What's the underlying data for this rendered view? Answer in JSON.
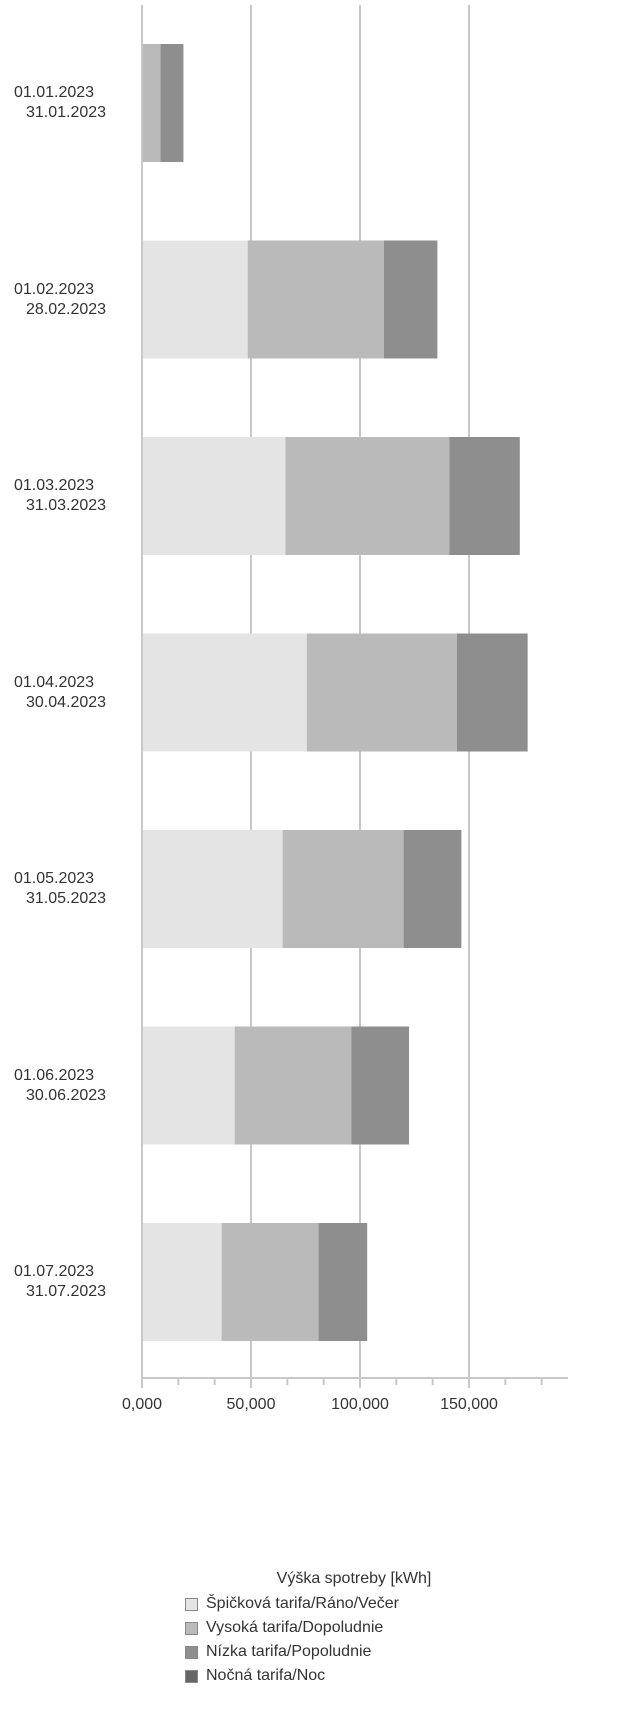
{
  "chart_data": {
    "type": "bar",
    "orientation": "horizontal",
    "stacked": true,
    "categories": [
      [
        "01.01.2023",
        "31.01.2023"
      ],
      [
        "01.02.2023",
        "28.02.2023"
      ],
      [
        "01.03.2023",
        "31.03.2023"
      ],
      [
        "01.04.2023",
        "30.04.2023"
      ],
      [
        "01.05.2023",
        "31.05.2023"
      ],
      [
        "01.06.2023",
        "30.06.2023"
      ],
      [
        "01.07.2023",
        "31.07.2023"
      ]
    ],
    "series": [
      {
        "name": "Špičková tarifa/Ráno/Večer",
        "color": "#e4e4e4",
        "values": [
          0,
          48500,
          65800,
          75600,
          64500,
          42500,
          36500
        ]
      },
      {
        "name": "Vysoká tarifa/Dopoludnie",
        "color": "#bababa",
        "values": [
          8500,
          62500,
          75200,
          68800,
          55500,
          53500,
          44500
        ]
      },
      {
        "name": "Nízka tarifa/Popoludnie",
        "color": "#8e8e8e",
        "values": [
          10500,
          24500,
          32300,
          32500,
          26500,
          26500,
          22300
        ]
      },
      {
        "name": "Nočná tarifa/Noc",
        "color": "#666666",
        "values": [
          0,
          0,
          0,
          0,
          0,
          0,
          0
        ]
      }
    ],
    "xlabel": "Výška spotreby [kWh]",
    "xlim": [
      0,
      195000
    ],
    "xticks": [
      0,
      50000,
      100000,
      150000
    ],
    "xtick_labels": [
      "0,000",
      "50,000",
      "100,000",
      "150,000"
    ],
    "grid": true,
    "legend_position": "bottom"
  }
}
